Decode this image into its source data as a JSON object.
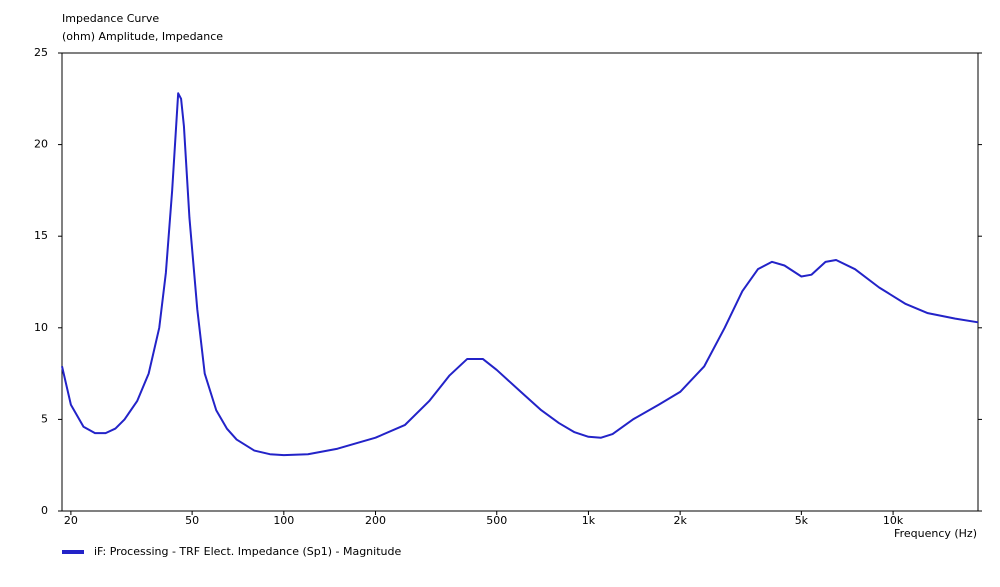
{
  "chart_data": {
    "type": "line",
    "title": "Impedance Curve",
    "subtitle": "(ohm)  Amplitude, Impedance",
    "x_label": "Frequency  (Hz)",
    "log_x": true,
    "x": [
      18.7,
      20,
      22,
      24,
      26,
      28,
      30,
      33,
      36,
      39,
      41,
      43,
      45,
      46,
      47,
      49,
      52,
      55,
      60,
      65,
      70,
      80,
      90,
      100,
      120,
      150,
      200,
      250,
      300,
      350,
      400,
      450,
      500,
      600,
      700,
      800,
      900,
      1000,
      1100,
      1200,
      1400,
      1700,
      2000,
      2400,
      2800,
      3200,
      3600,
      4000,
      4400,
      5000,
      5400,
      6000,
      6500,
      7500,
      9000,
      11000,
      13000,
      16000,
      19000
    ],
    "series": [
      {
        "name": "iF: Processing - TRF Elect. Impedance (Sp1) - Magnitude",
        "color": "#2323c8",
        "values": [
          7.9,
          5.8,
          4.6,
          4.25,
          4.25,
          4.5,
          5.0,
          6.0,
          7.5,
          10.0,
          13,
          17.5,
          22.8,
          22.5,
          21,
          16,
          11,
          7.5,
          5.5,
          4.5,
          3.9,
          3.3,
          3.1,
          3.05,
          3.1,
          3.4,
          4.0,
          4.7,
          6.0,
          7.4,
          8.3,
          8.3,
          7.7,
          6.5,
          5.5,
          4.8,
          4.3,
          4.05,
          4.0,
          4.2,
          5.0,
          5.8,
          6.5,
          7.9,
          10.0,
          12.0,
          13.2,
          13.6,
          13.4,
          12.8,
          12.9,
          13.6,
          13.7,
          13.2,
          12.2,
          11.3,
          10.8,
          10.5,
          10.3
        ]
      }
    ],
    "xlim": [
      18.7,
      19000
    ],
    "xticks": [
      20,
      50,
      100,
      200,
      500,
      {
        "value": 1000,
        "label": "1k"
      },
      {
        "value": 2000,
        "label": "2k"
      },
      {
        "value": 5000,
        "label": "5k"
      },
      {
        "value": 10000,
        "label": "10k"
      }
    ],
    "ylim": [
      0,
      25
    ],
    "yticks": [
      0,
      5,
      10,
      15,
      20,
      25
    ],
    "legend": "bottom-left"
  }
}
